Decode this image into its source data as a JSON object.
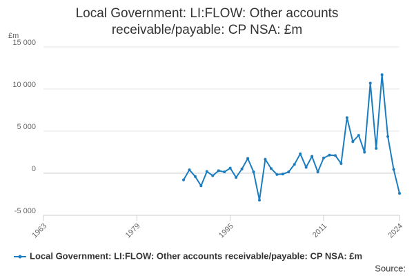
{
  "chart_data": {
    "type": "line",
    "title": "Local Government: LI:FLOW: Other accounts receivable/payable: CP NSA: £m",
    "y_unit": "£m",
    "source": "Source:",
    "x": [
      1987,
      1988,
      1989,
      1990,
      1991,
      1992,
      1993,
      1994,
      1995,
      1996,
      1997,
      1998,
      1999,
      2000,
      2001,
      2002,
      2003,
      2004,
      2005,
      2006,
      2007,
      2008,
      2009,
      2010,
      2011,
      2012,
      2013,
      2014,
      2015,
      2016,
      2017,
      2018,
      2019,
      2020,
      2021,
      2022,
      2023,
      2024
    ],
    "series": [
      {
        "name": "Local Government: LI:FLOW: Other accounts receivable/payable: CP NSA: £m",
        "color": "#1b7dbf",
        "values": [
          -800,
          400,
          -400,
          -1500,
          200,
          -300,
          300,
          150,
          600,
          -500,
          500,
          1750,
          150,
          -3200,
          1650,
          550,
          -150,
          -100,
          150,
          1050,
          2300,
          700,
          2000,
          150,
          1800,
          2150,
          2100,
          1150,
          6600,
          3750,
          4500,
          2500,
          10700,
          2950,
          11700,
          4350,
          450,
          -2400
        ]
      }
    ],
    "xlim": [
      1963,
      2024
    ],
    "xticks": [
      1963,
      1979,
      1995,
      2011,
      2024
    ],
    "ylim": [
      -5000,
      15000
    ],
    "yticks": [
      {
        "value": -5000,
        "label": "-5 000"
      },
      0,
      {
        "value": 5000,
        "label": "5 000"
      },
      {
        "value": 10000,
        "label": "10 000"
      },
      {
        "value": 15000,
        "label": "15 000"
      }
    ],
    "grid": true,
    "legend": "bottom"
  }
}
